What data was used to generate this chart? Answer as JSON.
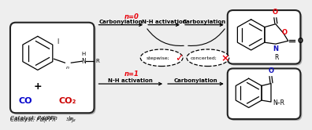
{
  "bg_color": "#eeeeee",
  "white": "#ffffff",
  "black": "#000000",
  "red": "#e8000a",
  "blue": "#0000cc",
  "dark_red": "#cc0000",
  "shadow_color": "#bbbbbb",
  "box_edge": "#222222",
  "n0_label": "n=0",
  "n1_label": "n=1",
  "top_steps": [
    "Carbonylation",
    "N-H activation",
    "Carboxylation"
  ],
  "bot_steps": [
    "N-H activation",
    "Carbonylation"
  ],
  "stepwise_label": "stepwise",
  "concerted_label": "concerted",
  "checkmark": "✓",
  "cross": "×",
  "catalyst_text": "Catalyst: Pd(PPh",
  "catalyst_sub": "3",
  "catalyst_end": ")₂",
  "co_text": "CO",
  "co2_text": "CO₂",
  "top_N": "N",
  "top_R": "R",
  "top_O1": "O",
  "top_O2": "O",
  "top_Oring": "O",
  "bot_NR": "N–R",
  "bot_O": "O"
}
